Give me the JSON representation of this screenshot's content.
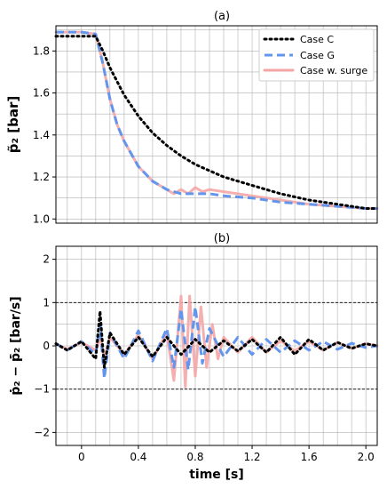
{
  "colors": {
    "case_c": "#000000",
    "case_g": "#6495ed",
    "case_surge": "#f4a6a6",
    "grid": "#b0b0b0",
    "ref_line": "#000000"
  },
  "chart_data": [
    {
      "type": "line",
      "title": "(a)",
      "ylabel": "p̃₂ [bar]",
      "xlabel": "",
      "xlim": [
        -0.18,
        2.08
      ],
      "ylim": [
        0.98,
        1.92
      ],
      "x_ticks": [
        0,
        0.4,
        0.8,
        1.2,
        1.6,
        2.0
      ],
      "x_tick_labels": [
        "0",
        "0.4",
        "0.8",
        "1.2",
        "1.6",
        "2.0"
      ],
      "y_ticks": [
        1.0,
        1.2,
        1.4,
        1.6,
        1.8
      ],
      "y_tick_labels": [
        "1.0",
        "1.2",
        "1.4",
        "1.6",
        "1.8"
      ],
      "grid": true,
      "legend_position": "top-right",
      "series": [
        {
          "name": "Case C",
          "style": "dotted",
          "x": [
            -0.18,
            0.0,
            0.1,
            0.15,
            0.2,
            0.3,
            0.4,
            0.5,
            0.6,
            0.7,
            0.8,
            0.9,
            1.0,
            1.2,
            1.4,
            1.6,
            1.8,
            2.0,
            2.08
          ],
          "y": [
            1.87,
            1.87,
            1.87,
            1.8,
            1.72,
            1.59,
            1.49,
            1.41,
            1.35,
            1.3,
            1.26,
            1.23,
            1.2,
            1.16,
            1.12,
            1.09,
            1.07,
            1.05,
            1.05
          ]
        },
        {
          "name": "Case G",
          "style": "dashed",
          "x": [
            -0.18,
            0.0,
            0.1,
            0.15,
            0.2,
            0.25,
            0.3,
            0.4,
            0.5,
            0.6,
            0.7,
            0.8,
            0.9,
            1.0,
            1.2,
            1.4,
            1.6,
            1.8,
            2.0,
            2.08
          ],
          "y": [
            1.89,
            1.89,
            1.88,
            1.74,
            1.57,
            1.45,
            1.37,
            1.25,
            1.18,
            1.14,
            1.12,
            1.12,
            1.12,
            1.11,
            1.1,
            1.08,
            1.07,
            1.06,
            1.05,
            1.05
          ]
        },
        {
          "name": "Case w. surge",
          "style": "solid",
          "x": [
            -0.18,
            0.0,
            0.1,
            0.15,
            0.2,
            0.25,
            0.3,
            0.4,
            0.5,
            0.6,
            0.65,
            0.7,
            0.75,
            0.8,
            0.85,
            0.9,
            1.0,
            1.2,
            1.4,
            1.6,
            1.8,
            2.0,
            2.08
          ],
          "y": [
            1.89,
            1.89,
            1.88,
            1.74,
            1.57,
            1.45,
            1.37,
            1.25,
            1.18,
            1.14,
            1.12,
            1.14,
            1.12,
            1.15,
            1.13,
            1.14,
            1.13,
            1.11,
            1.09,
            1.07,
            1.06,
            1.05,
            1.05
          ]
        }
      ]
    },
    {
      "type": "line",
      "title": "(b)",
      "ylabel": "ṗ₂ − ṗ̄₂ [bar/s]",
      "xlabel": "time [s]",
      "xlim": [
        -0.18,
        2.08
      ],
      "ylim": [
        -2.3,
        2.3
      ],
      "x_ticks": [
        0,
        0.4,
        0.8,
        1.2,
        1.6,
        2.0
      ],
      "x_tick_labels": [
        "0",
        "0.4",
        "0.8",
        "1.2",
        "1.6",
        "2.0"
      ],
      "y_ticks": [
        -2,
        -1,
        0,
        1,
        2
      ],
      "y_tick_labels": [
        "−2",
        "−1",
        "0",
        "1",
        "2"
      ],
      "reference_lines": [
        -1,
        1
      ],
      "grid": true,
      "series": [
        {
          "style": "solid",
          "x": [
            -0.18,
            -0.1,
            0.0,
            0.1,
            0.13,
            0.16,
            0.2,
            0.3,
            0.4,
            0.5,
            0.6,
            0.65,
            0.7,
            0.73,
            0.76,
            0.8,
            0.84,
            0.88,
            0.92,
            0.96,
            1.0,
            1.1,
            1.2,
            1.3,
            1.4,
            1.5,
            1.6,
            1.7,
            1.8,
            1.9,
            2.0,
            2.08
          ],
          "y": [
            0.05,
            -0.08,
            0.08,
            -0.1,
            0.2,
            -0.3,
            0.2,
            -0.2,
            0.25,
            -0.3,
            0.3,
            -0.8,
            1.15,
            -0.95,
            1.15,
            -0.7,
            0.9,
            -0.5,
            0.5,
            -0.3,
            0.2,
            -0.15,
            0.2,
            -0.15,
            0.12,
            -0.12,
            0.1,
            -0.1,
            0.08,
            -0.06,
            0.05,
            0.0
          ]
        },
        {
          "style": "dashed",
          "x": [
            -0.18,
            -0.1,
            0.0,
            0.1,
            0.13,
            0.16,
            0.2,
            0.3,
            0.4,
            0.5,
            0.6,
            0.65,
            0.7,
            0.75,
            0.8,
            0.85,
            0.9,
            1.0,
            1.1,
            1.2,
            1.3,
            1.4,
            1.5,
            1.6,
            1.7,
            1.8,
            1.9,
            2.0,
            2.08
          ],
          "y": [
            0.05,
            -0.1,
            0.1,
            -0.2,
            0.5,
            -0.75,
            0.3,
            -0.3,
            0.35,
            -0.35,
            0.4,
            -0.5,
            0.85,
            -0.55,
            0.9,
            -0.4,
            0.4,
            -0.25,
            0.2,
            -0.2,
            0.15,
            -0.15,
            0.12,
            -0.1,
            0.1,
            -0.08,
            0.06,
            -0.04,
            0.0
          ]
        },
        {
          "style": "dotted",
          "x": [
            -0.18,
            -0.1,
            0.0,
            0.1,
            0.13,
            0.16,
            0.2,
            0.3,
            0.4,
            0.5,
            0.6,
            0.7,
            0.8,
            0.9,
            1.0,
            1.1,
            1.2,
            1.3,
            1.4,
            1.5,
            1.6,
            1.7,
            1.8,
            1.9,
            2.0,
            2.08
          ],
          "y": [
            0.05,
            -0.1,
            0.1,
            -0.3,
            0.8,
            -0.5,
            0.3,
            -0.2,
            0.2,
            -0.25,
            0.2,
            -0.2,
            0.15,
            -0.15,
            0.12,
            -0.12,
            0.15,
            -0.15,
            0.2,
            -0.2,
            0.15,
            -0.1,
            0.08,
            -0.06,
            0.05,
            0.0
          ]
        }
      ]
    }
  ]
}
